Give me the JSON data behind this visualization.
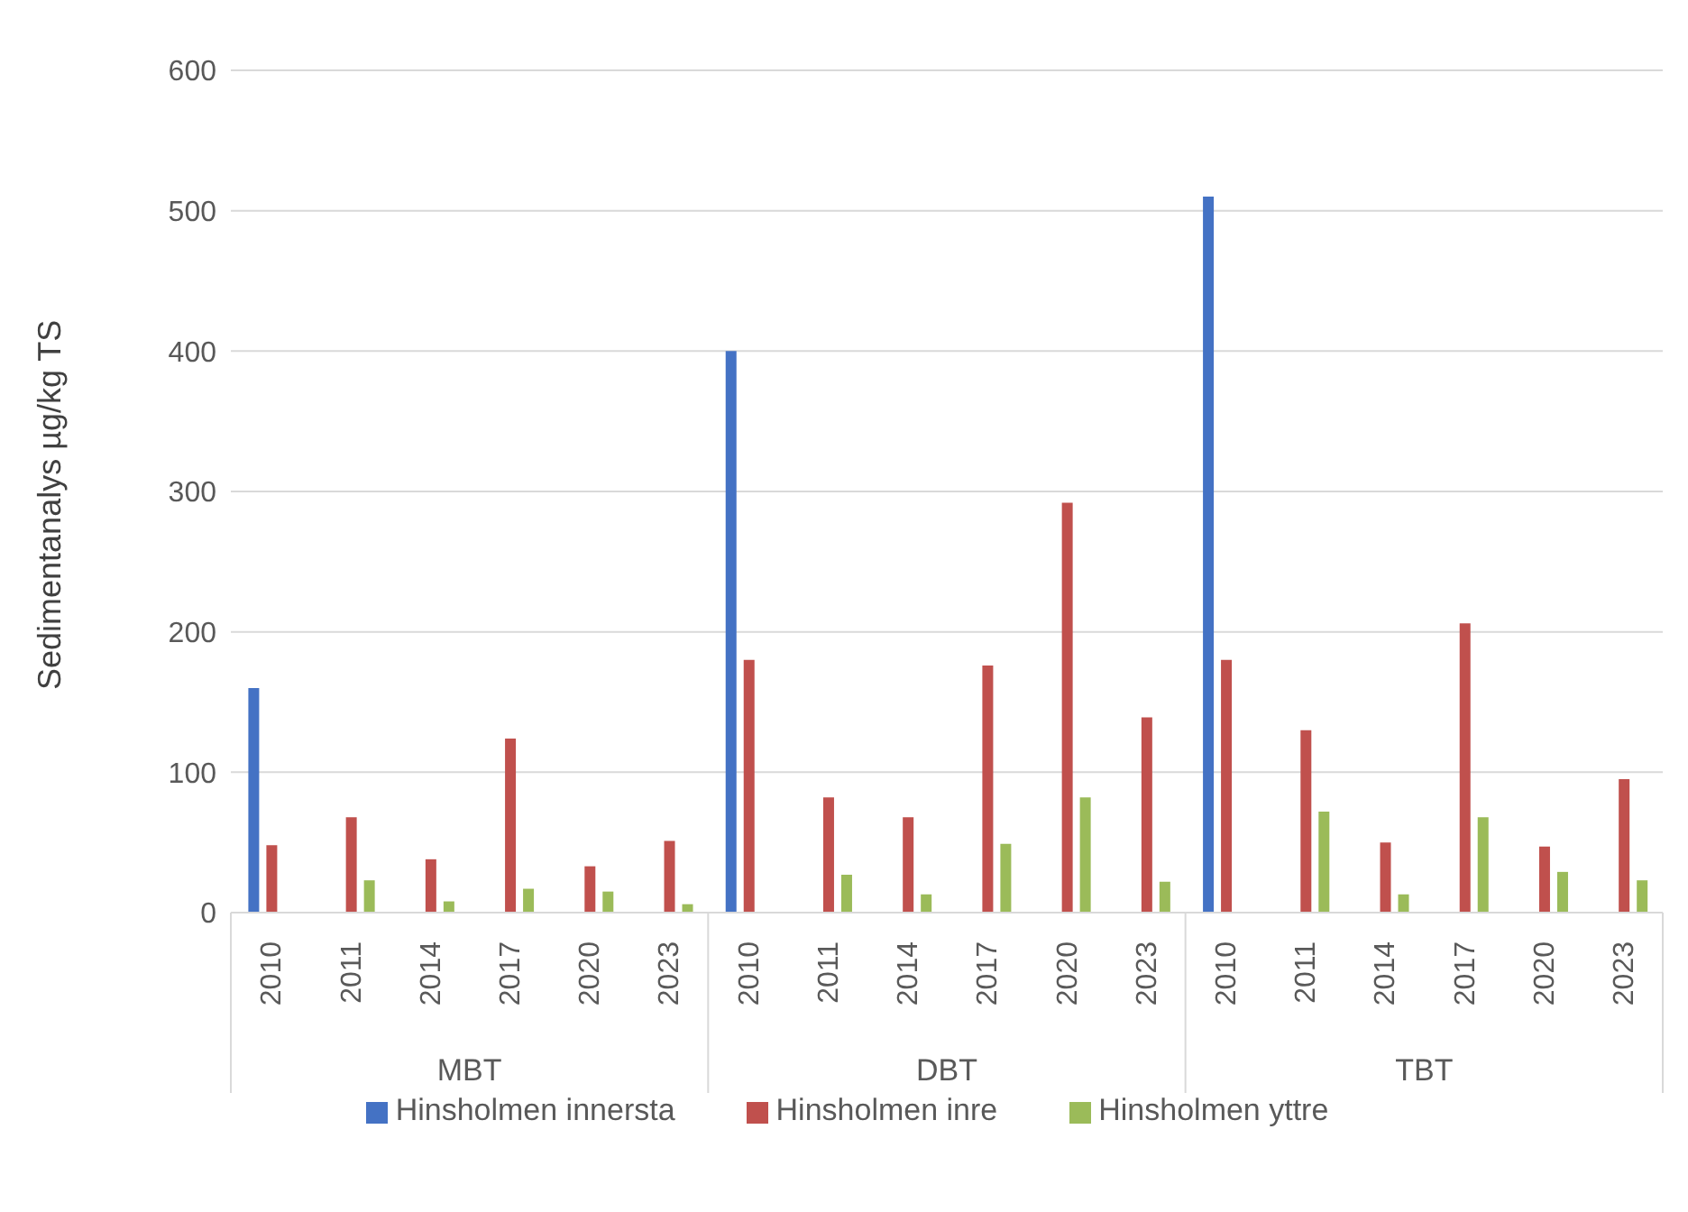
{
  "chart_data": {
    "type": "bar",
    "ylabel": "Sedimentanalys µg/kg TS",
    "categories": [
      "2010",
      "2011",
      "2014",
      "2017",
      "2020",
      "2023",
      "2010",
      "2011",
      "2014",
      "2017",
      "2020",
      "2023",
      "2010",
      "2011",
      "2014",
      "2017",
      "2020",
      "2023"
    ],
    "annotations": [
      "MBT",
      "DBT",
      "TBT"
    ],
    "series": [
      {
        "name": "Hinsholmen innersta",
        "color": "#4472c4",
        "values": [
          160,
          null,
          null,
          null,
          null,
          null,
          400,
          null,
          null,
          null,
          null,
          null,
          510,
          null,
          null,
          null,
          null,
          null
        ]
      },
      {
        "name": "Hinsholmen inre",
        "color": "#c0504d",
        "values": [
          48,
          68,
          38,
          124,
          33,
          51,
          180,
          82,
          68,
          176,
          292,
          139,
          180,
          130,
          50,
          206,
          47,
          95
        ]
      },
      {
        "name": "Hinsholmen yttre",
        "color": "#9bbb59",
        "values": [
          null,
          23,
          8,
          17,
          15,
          6,
          null,
          27,
          13,
          49,
          82,
          22,
          null,
          72,
          13,
          68,
          29,
          23
        ]
      }
    ],
    "ylim": [
      0,
      600
    ],
    "yticks": [
      0,
      100,
      200,
      300,
      400,
      500,
      600
    ],
    "grid": "y",
    "legend": "bottom"
  }
}
